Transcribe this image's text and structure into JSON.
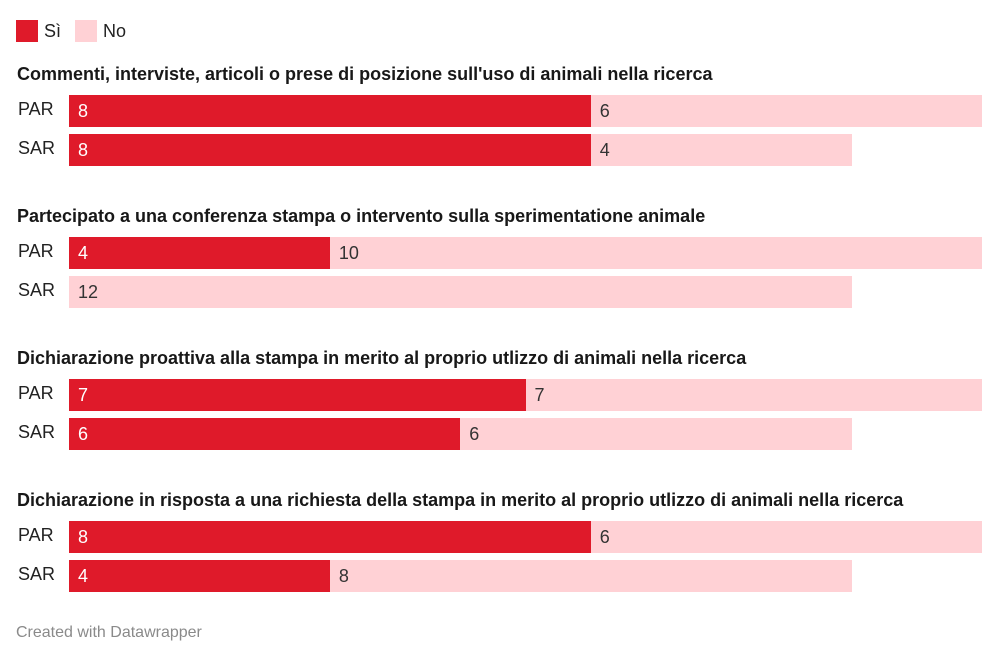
{
  "chart_data": {
    "type": "bar",
    "orientation": "horizontal",
    "stacked": true,
    "legend_position": "top-left",
    "colors": {
      "Sì": "#df1a2a",
      "No": "#ffd1d5"
    },
    "legend": [
      "Sì",
      "No"
    ],
    "groups": [
      {
        "title": "Commenti, interviste, articoli o prese di posizione sull'uso di animali nella ricerca",
        "rows": [
          {
            "label": "PAR",
            "si": 8,
            "no": 6
          },
          {
            "label": "SAR",
            "si": 8,
            "no": 4
          }
        ]
      },
      {
        "title": "Partecipato a una conferenza stampa o intervento sulla sperimentatione animale",
        "rows": [
          {
            "label": "PAR",
            "si": 4,
            "no": 10
          },
          {
            "label": "SAR",
            "si": 0,
            "no": 12
          }
        ]
      },
      {
        "title": "Dichiarazione proattiva alla stampa in merito al proprio utlizzo di animali nella ricerca",
        "rows": [
          {
            "label": "PAR",
            "si": 7,
            "no": 7
          },
          {
            "label": "SAR",
            "si": 6,
            "no": 6
          }
        ]
      },
      {
        "title": "Dichiarazione in risposta a una richiesta della stampa in merito al proprio utlizzo di animali nella ricerca",
        "rows": [
          {
            "label": "PAR",
            "si": 8,
            "no": 6
          },
          {
            "label": "SAR",
            "si": 4,
            "no": 8
          }
        ]
      }
    ]
  },
  "footer": "Created with Datawrapper"
}
